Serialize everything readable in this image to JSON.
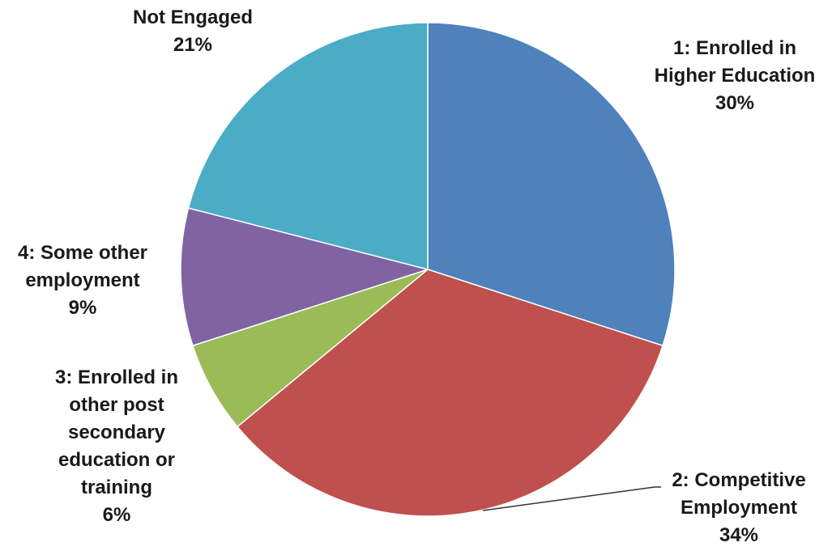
{
  "chart_data": {
    "type": "pie",
    "title": "",
    "start_angle_deg": 0,
    "direction": "clockwise",
    "slices": [
      {
        "lines": [
          "1: Enrolled in",
          "Higher Education"
        ],
        "value": 30,
        "value_label": "30%",
        "color": "#4F81BD"
      },
      {
        "lines": [
          "2: Competitive",
          "Employment"
        ],
        "value": 34,
        "value_label": "34%",
        "color": "#C0504D"
      },
      {
        "lines": [
          "3: Enrolled in",
          "other post",
          "secondary",
          "education or",
          "training"
        ],
        "value": 6,
        "value_label": "6%",
        "color": "#9BBB59"
      },
      {
        "lines": [
          "4: Some other",
          "employment"
        ],
        "value": 9,
        "value_label": "9%",
        "color": "#8064A2"
      },
      {
        "lines": [
          "Not Engaged"
        ],
        "value": 21,
        "value_label": "21%",
        "color": "#4BACC6"
      }
    ],
    "legend": "none",
    "data_labels": "outside"
  }
}
